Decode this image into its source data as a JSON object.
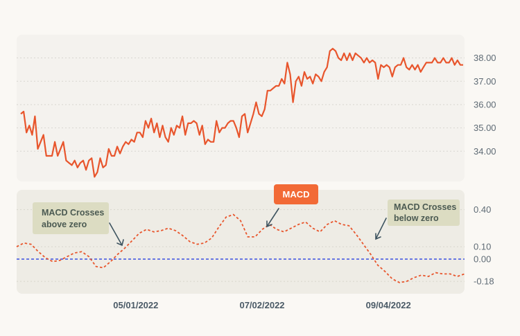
{
  "colors": {
    "price": "#e8552c",
    "macd": "#e8552c",
    "zero_line": "#3a4fe0",
    "panel_price": "#f4f2ee",
    "panel_macd": "#eeece5",
    "callout_bg": "#dcdcc2",
    "macd_badge": "#f26a36",
    "arrow": "#3e5460"
  },
  "labels": {
    "macd_badge": "MACD",
    "callout_left": [
      "MACD Crosses",
      "above zero"
    ],
    "callout_right": [
      "MACD Crosses",
      "below zero"
    ]
  },
  "chart_data": [
    {
      "type": "line",
      "series": [
        {
          "values": [
            35.6,
            35.7,
            34.8,
            35.1,
            34.7,
            35.5,
            34.1,
            34.4,
            34.7,
            33.8,
            33.8,
            33.8,
            34.4,
            33.8,
            34.1,
            34.4,
            33.6,
            33.5,
            33.4,
            33.6,
            33.3,
            33.5,
            33.6,
            33.2,
            33.6,
            33.7,
            32.9,
            33.1,
            33.7,
            33.3,
            33.4,
            34.1,
            33.8,
            33.8,
            34.2,
            33.9,
            34.2,
            34.4,
            34.3,
            34.5,
            34.4,
            34.8,
            34.8,
            34.6,
            35.3,
            35.0,
            35.4,
            34.8,
            35.2,
            34.6,
            35.1,
            34.6,
            34.4,
            35.0,
            34.7,
            35.1,
            35.0,
            35.5,
            34.7,
            35.2,
            35.2,
            35.3,
            35.2,
            34.7,
            35.1,
            34.3,
            34.5,
            34.4,
            34.4,
            35.3,
            34.8,
            35.0,
            35.0,
            35.2,
            35.3,
            35.3,
            35.0,
            34.6,
            35.5,
            35.6,
            34.8,
            35.2,
            35.6,
            36.1,
            35.6,
            35.5,
            35.8,
            36.6,
            36.6,
            36.7,
            36.8,
            36.8,
            37.1,
            36.9,
            37.8,
            37.3,
            36.1,
            37.0,
            37.2,
            36.8,
            37.4,
            37.1,
            37.2,
            36.9,
            37.3,
            37.2,
            37.0,
            37.4,
            37.6,
            38.3,
            38.4,
            38.3,
            38.0,
            37.9,
            38.2,
            37.9,
            38.2,
            37.9,
            38.2,
            38.1,
            38.0,
            37.8,
            38.0,
            37.8,
            37.9,
            37.8,
            37.1,
            37.7,
            37.6,
            37.7,
            37.6,
            37.2,
            37.6,
            37.7,
            37.7,
            38.0,
            37.6,
            37.5,
            37.7,
            37.5,
            37.7,
            37.4,
            37.6,
            37.8,
            37.8,
            37.8,
            38.0,
            37.8,
            37.8,
            38.0,
            37.8,
            37.8,
            38.0,
            37.7,
            37.9,
            37.7,
            37.7
          ]
        }
      ],
      "yticks": [
        "34.00",
        "35.00",
        "36.00",
        "37.00",
        "38.00"
      ],
      "ylim": [
        32.7,
        39.0
      ],
      "grid": true
    },
    {
      "type": "line",
      "series": [
        {
          "values": [
            0.1,
            0.13,
            0.12,
            0.06,
            0.01,
            -0.02,
            -0.01,
            0.02,
            0.05,
            0.06,
            0.02,
            -0.06,
            -0.07,
            -0.02,
            0.04,
            0.09,
            0.15,
            0.21,
            0.24,
            0.22,
            0.23,
            0.25,
            0.23,
            0.19,
            0.14,
            0.12,
            0.13,
            0.17,
            0.26,
            0.34,
            0.36,
            0.31,
            0.18,
            0.18,
            0.24,
            0.28,
            0.24,
            0.22,
            0.25,
            0.28,
            0.3,
            0.25,
            0.22,
            0.28,
            0.31,
            0.28,
            0.27,
            0.2,
            0.12,
            0.04,
            -0.05,
            -0.1,
            -0.16,
            -0.19,
            -0.18,
            -0.15,
            -0.13,
            -0.14,
            -0.11,
            -0.12,
            -0.12,
            -0.14,
            -0.12
          ]
        }
      ],
      "yticks": [
        "-0.18",
        "0.00",
        "0.10",
        "0.40"
      ],
      "xticks": [
        "05/01/2022",
        "07/02/2022",
        "09/04/2022"
      ],
      "ylim": [
        -0.28,
        0.56
      ],
      "zero_line": 0,
      "grid": true
    }
  ]
}
